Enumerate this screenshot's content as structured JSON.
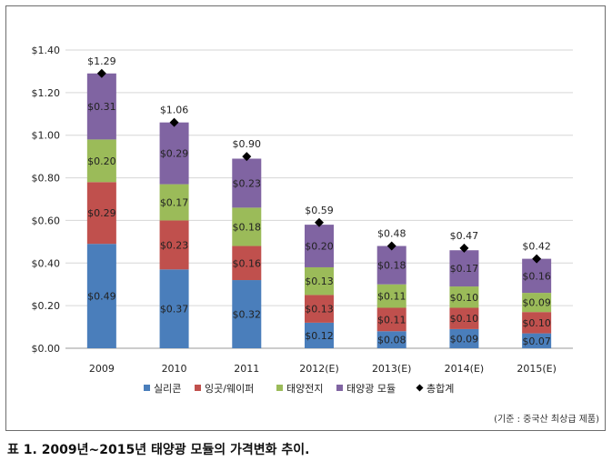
{
  "caption": "표 1. 2009년~2015년 태양광 모듈의 가격변화 추이.",
  "source_note": "(기준 : 중국산 최상급 제품)",
  "chart_data": {
    "type": "bar",
    "stacked": true,
    "categories": [
      "2009",
      "2010",
      "2011",
      "2012(E)",
      "2013(E)",
      "2014(E)",
      "2015(E)"
    ],
    "series": [
      {
        "name": "실리콘",
        "color": "#4a7ebb",
        "values": [
          0.49,
          0.37,
          0.32,
          0.12,
          0.08,
          0.09,
          0.07
        ],
        "labels": [
          "$0.49",
          "$0.37",
          "$0.32",
          "$0.12",
          "$0.08",
          "$0.09",
          "$0.07"
        ]
      },
      {
        "name": "잉곳/웨이퍼",
        "color": "#c0504d",
        "values": [
          0.29,
          0.23,
          0.16,
          0.13,
          0.11,
          0.1,
          0.1
        ],
        "labels": [
          "$0.29",
          "$0.23",
          "$0.16",
          "$0.13",
          "$0.11",
          "$0.10",
          "$0.10"
        ]
      },
      {
        "name": "태양전지",
        "color": "#9bbb59",
        "values": [
          0.2,
          0.17,
          0.18,
          0.13,
          0.11,
          0.1,
          0.09
        ],
        "labels": [
          "$0.20",
          "$0.17",
          "$0.18",
          "$0.13",
          "$0.11",
          "$0.10",
          "$0.09"
        ]
      },
      {
        "name": "태양광 모듈",
        "color": "#8064a2",
        "values": [
          0.31,
          0.29,
          0.23,
          0.2,
          0.18,
          0.17,
          0.16
        ],
        "labels": [
          "$0.31",
          "$0.29",
          "$0.23",
          "$0.20",
          "$0.18",
          "$0.17",
          "$0.16"
        ]
      }
    ],
    "totals": {
      "name": "총합계",
      "color": "#000000",
      "values": [
        1.29,
        1.06,
        0.9,
        0.59,
        0.48,
        0.47,
        0.42
      ],
      "labels": [
        "$1.29",
        "$1.06",
        "$0.90",
        "$0.59",
        "$0.48",
        "$0.47",
        "$0.42"
      ]
    },
    "y_ticks": [
      0,
      0.2,
      0.4,
      0.6,
      0.8,
      1.0,
      1.2,
      1.4
    ],
    "y_tick_labels": [
      "$0.00",
      "$0.20",
      "$0.40",
      "$0.60",
      "$0.80",
      "$1.00",
      "$1.20",
      "$1.40"
    ],
    "ylim": [
      0,
      1.4
    ],
    "grid": true,
    "legend_position": "bottom",
    "title": "",
    "xlabel": "",
    "ylabel": ""
  }
}
